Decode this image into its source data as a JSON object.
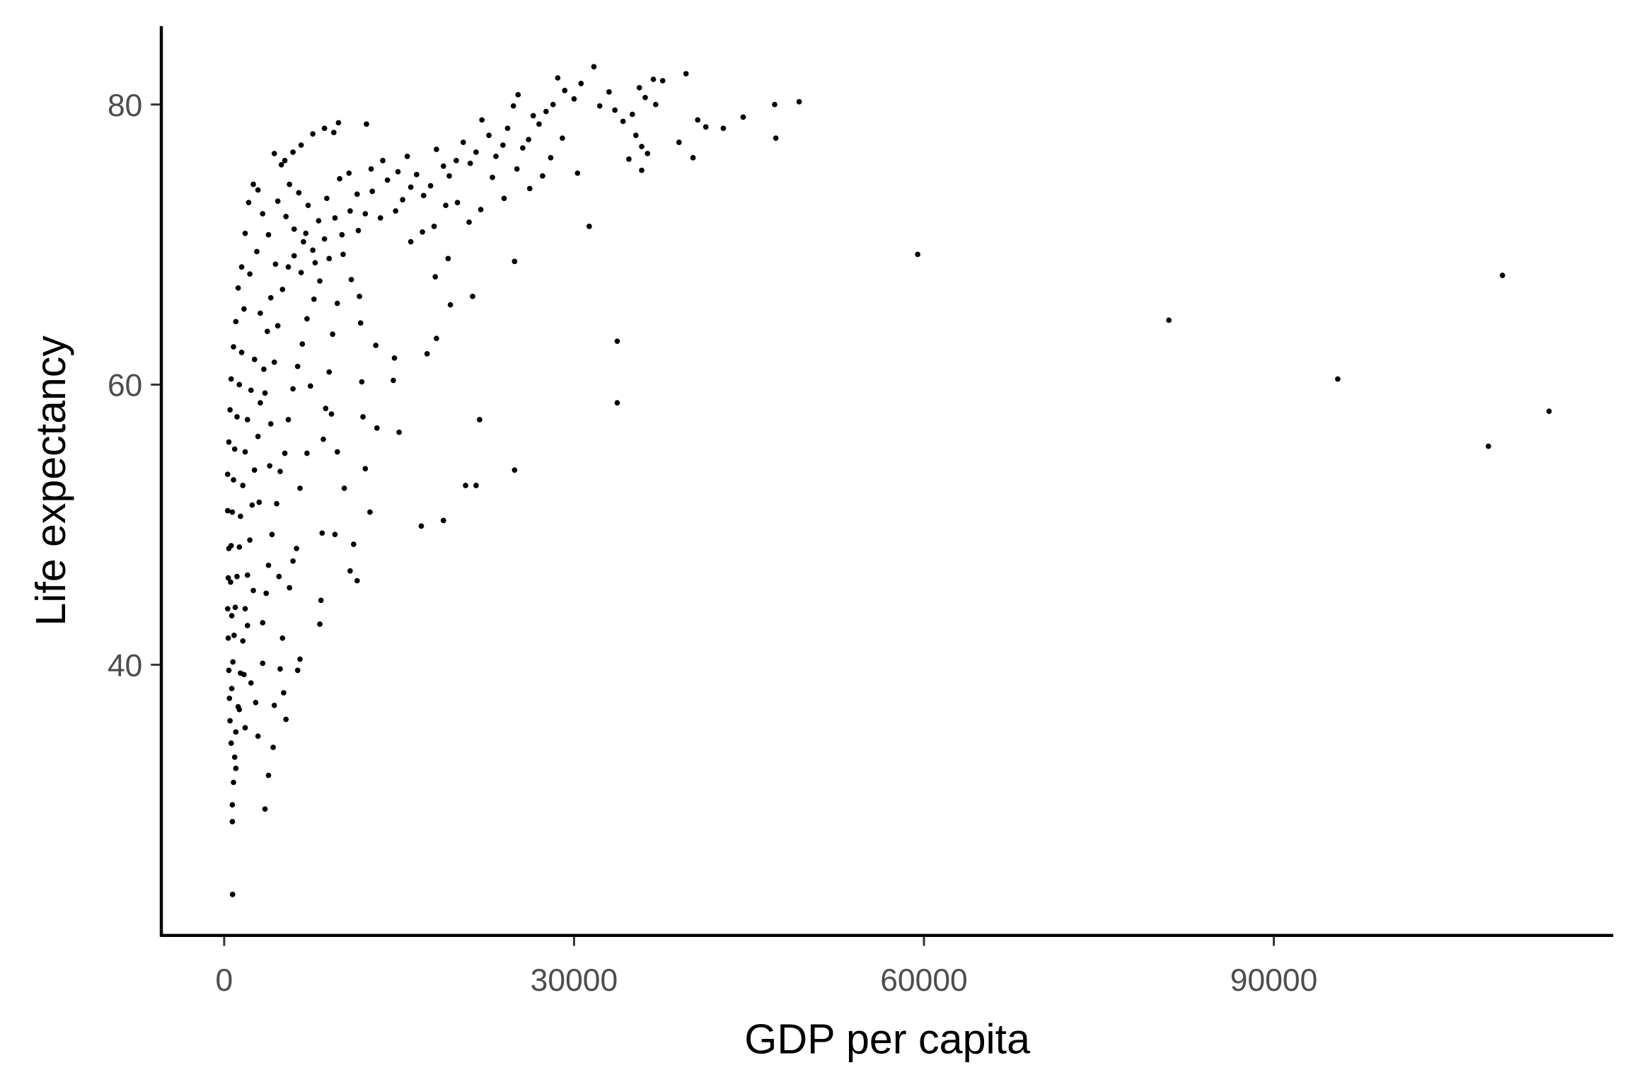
{
  "chart_data": {
    "type": "scatter",
    "title": "",
    "xlabel": "GDP per capita",
    "ylabel": "Life expectancy",
    "xlim": [
      -5500,
      119500
    ],
    "ylim": [
      20.6,
      85.6
    ],
    "xticks": [
      0,
      30000,
      60000,
      90000
    ],
    "xtick_labels": [
      "0",
      "30000",
      "60000",
      "90000"
    ],
    "yticks": [
      40,
      60,
      80
    ],
    "ytick_labels": [
      "40",
      "60",
      "80"
    ],
    "grid": false,
    "point_color": "#000000",
    "points": [
      [
        59460,
        69.3
      ],
      [
        81000,
        64.6
      ],
      [
        95480,
        60.4
      ],
      [
        109600,
        67.8
      ],
      [
        108400,
        55.6
      ],
      [
        113600,
        58.1
      ],
      [
        49300,
        80.2
      ],
      [
        47200,
        80.0
      ],
      [
        47300,
        77.6
      ],
      [
        44500,
        79.1
      ],
      [
        42800,
        78.3
      ],
      [
        41300,
        78.4
      ],
      [
        40600,
        78.9
      ],
      [
        40200,
        76.2
      ],
      [
        39000,
        77.3
      ],
      [
        39600,
        82.2
      ],
      [
        37600,
        81.7
      ],
      [
        36800,
        81.8
      ],
      [
        37000,
        80.0
      ],
      [
        36100,
        80.5
      ],
      [
        35600,
        81.2
      ],
      [
        35000,
        79.3
      ],
      [
        35300,
        77.8
      ],
      [
        35800,
        77.0
      ],
      [
        36300,
        76.5
      ],
      [
        35800,
        75.3
      ],
      [
        34700,
        76.1
      ],
      [
        34200,
        78.8
      ],
      [
        33500,
        79.6
      ],
      [
        33000,
        80.9
      ],
      [
        32200,
        79.9
      ],
      [
        31700,
        82.7
      ],
      [
        30600,
        81.5
      ],
      [
        30000,
        80.4
      ],
      [
        29200,
        81.0
      ],
      [
        28600,
        81.9
      ],
      [
        28200,
        80.0
      ],
      [
        27600,
        79.5
      ],
      [
        27000,
        78.6
      ],
      [
        26500,
        79.2
      ],
      [
        26100,
        77.5
      ],
      [
        25600,
        76.9
      ],
      [
        25200,
        80.7
      ],
      [
        24800,
        79.9
      ],
      [
        24300,
        78.3
      ],
      [
        23900,
        77.1
      ],
      [
        23300,
        76.3
      ],
      [
        22700,
        77.8
      ],
      [
        22100,
        78.9
      ],
      [
        21600,
        76.6
      ],
      [
        21100,
        75.8
      ],
      [
        20500,
        77.3
      ],
      [
        19900,
        76.0
      ],
      [
        19300,
        74.9
      ],
      [
        18800,
        75.6
      ],
      [
        18200,
        76.8
      ],
      [
        17700,
        74.2
      ],
      [
        17100,
        73.5
      ],
      [
        16500,
        75.0
      ],
      [
        16000,
        74.1
      ],
      [
        15300,
        73.2
      ],
      [
        14700,
        72.4
      ],
      [
        14000,
        74.6
      ],
      [
        13400,
        71.9
      ],
      [
        12700,
        73.8
      ],
      [
        12100,
        72.2
      ],
      [
        30300,
        75.1
      ],
      [
        29000,
        77.6
      ],
      [
        28000,
        76.2
      ],
      [
        27300,
        74.9
      ],
      [
        26200,
        74.0
      ],
      [
        25100,
        75.4
      ],
      [
        24000,
        73.3
      ],
      [
        23000,
        74.8
      ],
      [
        22000,
        72.5
      ],
      [
        21000,
        71.6
      ],
      [
        20000,
        73.0
      ],
      [
        19000,
        72.8
      ],
      [
        18000,
        71.3
      ],
      [
        17000,
        70.9
      ],
      [
        16000,
        70.2
      ],
      [
        31300,
        71.3
      ],
      [
        33700,
        63.1
      ],
      [
        33700,
        58.7
      ],
      [
        24900,
        68.8
      ],
      [
        24900,
        53.9
      ],
      [
        21900,
        57.5
      ],
      [
        21600,
        52.8
      ],
      [
        21300,
        66.3
      ],
      [
        20700,
        52.8
      ],
      [
        19400,
        65.7
      ],
      [
        18200,
        63.3
      ],
      [
        18800,
        50.3
      ],
      [
        16900,
        49.9
      ],
      [
        17400,
        62.2
      ],
      [
        18100,
        67.7
      ],
      [
        19200,
        69.0
      ],
      [
        15000,
        56.6
      ],
      [
        14500,
        60.3
      ],
      [
        14600,
        61.9
      ],
      [
        13100,
        56.9
      ],
      [
        13000,
        62.8
      ],
      [
        12500,
        50.9
      ],
      [
        12100,
        54.0
      ],
      [
        11900,
        57.7
      ],
      [
        11800,
        60.2
      ],
      [
        11400,
        46.0
      ],
      [
        11100,
        48.6
      ],
      [
        10800,
        46.7
      ],
      [
        11700,
        64.4
      ],
      [
        11600,
        66.3
      ],
      [
        10900,
        67.5
      ],
      [
        10200,
        69.3
      ],
      [
        9700,
        65.8
      ],
      [
        9300,
        63.6
      ],
      [
        9000,
        60.9
      ],
      [
        8700,
        58.3
      ],
      [
        8500,
        56.1
      ],
      [
        9200,
        57.9
      ],
      [
        9700,
        55.2
      ],
      [
        10300,
        52.6
      ],
      [
        9500,
        49.3
      ],
      [
        8400,
        49.4
      ],
      [
        8300,
        44.6
      ],
      [
        8200,
        42.9
      ],
      [
        11500,
        71.0
      ],
      [
        10800,
        72.4
      ],
      [
        10100,
        70.7
      ],
      [
        9500,
        71.9
      ],
      [
        9000,
        69.0
      ],
      [
        8600,
        70.4
      ],
      [
        8100,
        71.7
      ],
      [
        7600,
        69.6
      ],
      [
        7200,
        72.8
      ],
      [
        6800,
        70.2
      ],
      [
        6400,
        73.7
      ],
      [
        6000,
        71.1
      ],
      [
        5600,
        74.3
      ],
      [
        5300,
        72.0
      ],
      [
        4900,
        75.7
      ],
      [
        4600,
        73.1
      ],
      [
        4300,
        76.5
      ],
      [
        9800,
        78.7
      ],
      [
        9400,
        78.0
      ],
      [
        8600,
        78.3
      ],
      [
        7600,
        77.9
      ],
      [
        6600,
        77.1
      ],
      [
        5900,
        76.6
      ],
      [
        5200,
        76.0
      ],
      [
        12200,
        78.6
      ],
      [
        8200,
        67.4
      ],
      [
        7700,
        66.1
      ],
      [
        7100,
        64.7
      ],
      [
        6700,
        62.9
      ],
      [
        6300,
        61.3
      ],
      [
        5900,
        59.7
      ],
      [
        5500,
        57.5
      ],
      [
        5200,
        55.1
      ],
      [
        4800,
        53.8
      ],
      [
        4500,
        51.5
      ],
      [
        4100,
        49.3
      ],
      [
        3800,
        47.1
      ],
      [
        3600,
        45.1
      ],
      [
        3300,
        43.0
      ],
      [
        7400,
        59.9
      ],
      [
        7100,
        55.1
      ],
      [
        6500,
        52.6
      ],
      [
        6200,
        48.3
      ],
      [
        5900,
        47.4
      ],
      [
        5600,
        45.5
      ],
      [
        4700,
        46.3
      ],
      [
        5000,
        41.9
      ],
      [
        6500,
        40.4
      ],
      [
        6300,
        39.6
      ],
      [
        4800,
        39.7
      ],
      [
        5100,
        38.0
      ],
      [
        4300,
        37.1
      ],
      [
        5300,
        36.1
      ],
      [
        4200,
        34.1
      ],
      [
        3800,
        32.1
      ],
      [
        3500,
        29.7
      ],
      [
        2900,
        34.9
      ],
      [
        2700,
        37.3
      ],
      [
        3300,
        40.1
      ],
      [
        4400,
        68.6
      ],
      [
        4000,
        66.2
      ],
      [
        3700,
        63.8
      ],
      [
        3400,
        61.1
      ],
      [
        3100,
        58.7
      ],
      [
        2900,
        56.3
      ],
      [
        2600,
        53.9
      ],
      [
        2400,
        51.4
      ],
      [
        2200,
        48.9
      ],
      [
        2000,
        46.4
      ],
      [
        1800,
        44.0
      ],
      [
        1600,
        41.7
      ],
      [
        1400,
        39.4
      ],
      [
        1200,
        37.0
      ],
      [
        1000,
        35.2
      ],
      [
        900,
        33.4
      ],
      [
        800,
        31.6
      ],
      [
        700,
        30.0
      ],
      [
        700,
        28.8
      ],
      [
        3800,
        70.7
      ],
      [
        3300,
        72.2
      ],
      [
        2900,
        73.9
      ],
      [
        2500,
        74.3
      ],
      [
        2100,
        73.0
      ],
      [
        1800,
        70.8
      ],
      [
        1500,
        68.4
      ],
      [
        1200,
        66.9
      ],
      [
        1000,
        64.5
      ],
      [
        800,
        62.7
      ],
      [
        600,
        60.4
      ],
      [
        500,
        58.2
      ],
      [
        400,
        55.9
      ],
      [
        300,
        53.6
      ],
      [
        300,
        51.0
      ],
      [
        400,
        48.3
      ],
      [
        350,
        46.2
      ],
      [
        300,
        44.0
      ],
      [
        350,
        41.9
      ],
      [
        400,
        39.6
      ],
      [
        450,
        37.6
      ],
      [
        500,
        36.0
      ],
      [
        600,
        34.4
      ],
      [
        720,
        23.6
      ],
      [
        2600,
        61.8
      ],
      [
        2300,
        59.6
      ],
      [
        2000,
        57.5
      ],
      [
        1800,
        55.2
      ],
      [
        1600,
        52.8
      ],
      [
        1400,
        50.6
      ],
      [
        1300,
        48.4
      ],
      [
        1100,
        46.3
      ],
      [
        950,
        44.1
      ],
      [
        850,
        42.1
      ],
      [
        750,
        40.2
      ],
      [
        650,
        38.3
      ],
      [
        1500,
        62.3
      ],
      [
        1300,
        60.0
      ],
      [
        1100,
        57.7
      ],
      [
        900,
        55.4
      ],
      [
        800,
        53.2
      ],
      [
        700,
        50.9
      ],
      [
        600,
        48.5
      ],
      [
        550,
        45.9
      ],
      [
        650,
        43.5
      ],
      [
        1700,
        65.4
      ],
      [
        2200,
        67.9
      ],
      [
        2800,
        69.5
      ],
      [
        3100,
        65.1
      ],
      [
        3500,
        59.4
      ],
      [
        4000,
        57.2
      ],
      [
        4300,
        61.6
      ],
      [
        4600,
        64.2
      ],
      [
        5000,
        66.8
      ],
      [
        5500,
        68.4
      ],
      [
        6000,
        69.2
      ],
      [
        6600,
        68.0
      ],
      [
        7000,
        70.8
      ],
      [
        7800,
        68.7
      ],
      [
        8800,
        73.3
      ],
      [
        9900,
        74.7
      ],
      [
        10700,
        75.1
      ],
      [
        11400,
        73.6
      ],
      [
        12600,
        75.4
      ],
      [
        13600,
        76.0
      ],
      [
        14900,
        75.2
      ],
      [
        15700,
        76.3
      ],
      [
        3900,
        54.2
      ],
      [
        3000,
        51.6
      ],
      [
        2500,
        45.3
      ],
      [
        2000,
        42.8
      ],
      [
        1700,
        39.3
      ],
      [
        1300,
        36.8
      ],
      [
        1000,
        32.6
      ],
      [
        1800,
        35.5
      ],
      [
        2300,
        38.7
      ]
    ]
  }
}
